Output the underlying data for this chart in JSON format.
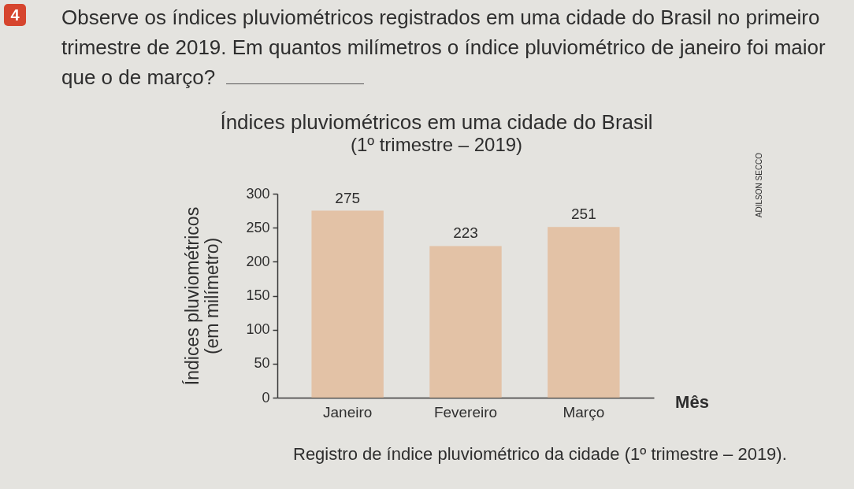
{
  "chart_data": {
    "type": "bar",
    "title": "Índices pluviométricos em uma cidade do Brasil",
    "subtitle": "(1º trimestre – 2019)",
    "xlabel": "Mês",
    "ylabel": "Índices pluviométricos\n(em milímetro)",
    "categories": [
      "Janeiro",
      "Fevereiro",
      "Março"
    ],
    "values": [
      275,
      223,
      251
    ],
    "color": "#e3c2a6",
    "ylim": [
      0,
      300
    ],
    "yticks": [
      0,
      50,
      100,
      150,
      200,
      250,
      300
    ],
    "data_labels": true,
    "grid": false,
    "annotations": [
      "4",
      "Observe os índices pluviométricos registrados em uma cidade do Brasil no primeiro trimestre de 2019. Em quantos milímetros o índice pluviométrico de janeiro foi maior que o de março?",
      "Registro de índice pluviométrico da cidade (1º trimestre – 2019).",
      "ADILSON SECCO"
    ]
  }
}
